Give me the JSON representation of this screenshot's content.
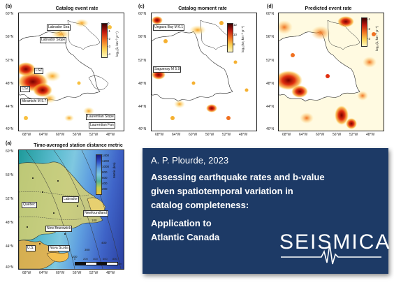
{
  "panels": {
    "b": {
      "label": "(b)",
      "title": "Catalog event rate",
      "colorbar": {
        "ticks": [
          "0",
          "-1",
          "-2",
          "-3",
          "-4"
        ],
        "unit": "log₁₀(λ, km⁻² yr⁻¹)"
      },
      "labels": {
        "labrador_sea": "Labrador Sea",
        "labrador_slope": "Labrador Slope",
        "csz": "CSZ",
        "lsz": "LSZ",
        "miramichi": "Miramichi M 5.7",
        "laurentian_slope": "Laurentian Slope",
        "laurentian_fan": "Laurentian Fan"
      },
      "yticks": [
        "60°N",
        "56°N",
        "52°N",
        "48°N",
        "44°N",
        "40°N"
      ],
      "xticks": [
        "68°W",
        "64°W",
        "60°W",
        "56°W",
        "52°W",
        "48°W"
      ]
    },
    "c": {
      "label": "(c)",
      "title": "Catalog moment rate",
      "colorbar": {
        "ticks": [
          "12",
          "10",
          "8"
        ],
        "unit": "log₁₀(M₀ km⁻² yr⁻¹)"
      },
      "labels": {
        "ungava": "Ungava Bay M 6.1",
        "saguenay": "Saguenay M 5.9"
      },
      "yticks": [
        "60°N",
        "56°N",
        "52°N",
        "48°N",
        "44°N",
        "40°N"
      ],
      "xticks": [
        "68°W",
        "64°W",
        "60°W",
        "56°W",
        "52°W",
        "48°W"
      ]
    },
    "d": {
      "label": "(d)",
      "title": "Predicted event rate",
      "colorbar": {
        "ticks": [
          "-1",
          "-2",
          "-3"
        ],
        "unit": "log₁₀(λ, km⁻² yr⁻¹)"
      },
      "yticks": [
        "60°N",
        "56°N",
        "52°N",
        "48°N",
        "44°N",
        "40°N"
      ],
      "xticks": [
        "68°W",
        "64°W",
        "60°W",
        "56°W",
        "52°W",
        "48°W"
      ]
    },
    "a": {
      "label": "(a)",
      "title": "Time-averaged station distance metric",
      "colorbar": {
        "ticks": [
          "1400",
          "1200",
          "1000",
          "800",
          "600",
          "400",
          "200"
        ],
        "unit": "Metric (km)"
      },
      "labels": {
        "quebec": "Québec",
        "labrador": "Labrador",
        "newfoundland": "Newfoundland",
        "new_brunswick": "New Brunswick",
        "nova_scotia": "Nova Scotia",
        "us": "U.S."
      },
      "scalebar": {
        "ticks": [
          "0",
          "200",
          "400",
          "600",
          "800"
        ],
        "unit": "km"
      },
      "contours": [
        "100",
        "400",
        "300",
        "200"
      ],
      "yticks": [
        "60°N",
        "56°N",
        "52°N",
        "48°N",
        "44°N",
        "40°N"
      ],
      "xticks": [
        "68°W",
        "64°W",
        "60°W",
        "56°W",
        "52°W",
        "48°W"
      ]
    }
  },
  "info": {
    "author": "A. P. Plourde, 2023",
    "title_lines": [
      "Assessing earthquake rates and b-value",
      "given spatiotemporal variation in",
      "catalog completeness:",
      "Application to",
      "Atlantic Canada"
    ],
    "logo": "SEISMICA",
    "colors": {
      "background": "#1d3a66",
      "text": "#ffffff"
    }
  }
}
